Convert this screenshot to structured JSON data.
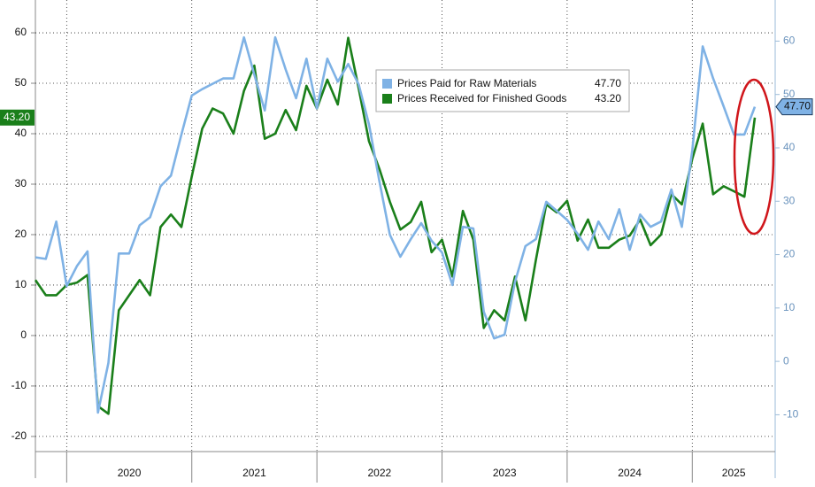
{
  "chart_data": {
    "type": "line",
    "categories": [
      null,
      null,
      null,
      null,
      null,
      null,
      null,
      null,
      null,
      "2020",
      null,
      null,
      null,
      null,
      null,
      null,
      null,
      null,
      null,
      null,
      null,
      "2021",
      null,
      null,
      null,
      null,
      null,
      null,
      null,
      null,
      null,
      null,
      null,
      "2022",
      null,
      null,
      null,
      null,
      null,
      null,
      null,
      null,
      null,
      null,
      null,
      "2023",
      null,
      null,
      null,
      null,
      null,
      null,
      null,
      null,
      null,
      null,
      null,
      "2024",
      null,
      null,
      null,
      null,
      null,
      null,
      null,
      null,
      null,
      "2025",
      null,
      null
    ],
    "series": [
      {
        "name": "Prices Paid for Raw Materials",
        "color": "#7fb2e5",
        "axis": "y2",
        "values": [
          19.5,
          19.2,
          26.2,
          14.1,
          17.9,
          20.6,
          -9.6,
          -0.3,
          20.2,
          20.2,
          25.5,
          27,
          32.8,
          34.8,
          42.5,
          49.8,
          51,
          52,
          53,
          53,
          60.7,
          53.7,
          47,
          60.7,
          54.7,
          49.3,
          56.7,
          47.4,
          56.7,
          52.4,
          55.7,
          51.9,
          44.4,
          33.7,
          23.7,
          19.6,
          22.9,
          25.9,
          22.6,
          20.4,
          14.3,
          25.2,
          24.9,
          9.3,
          4.3,
          5,
          14.9,
          21.6,
          22.9,
          29.9,
          28.2,
          26.5,
          23.9,
          20.9,
          26.2,
          22.9,
          28.5,
          20.9,
          27.5,
          25.2,
          26.2,
          32.2,
          25.2,
          39.5,
          59,
          53,
          47.8,
          42.5,
          42.5,
          47.7
        ],
        "value_labels": [
          null,
          null,
          null,
          null,
          null,
          null,
          null,
          null,
          null,
          null,
          null,
          null,
          null,
          null,
          null,
          null,
          null,
          null,
          null,
          null,
          null,
          null,
          null,
          null,
          null,
          null,
          null,
          null,
          null,
          null,
          null,
          null,
          null,
          null,
          null,
          null,
          null,
          null,
          null,
          null,
          null,
          null,
          null,
          null,
          null,
          null,
          null,
          null,
          null,
          null,
          null,
          null,
          null,
          null,
          null,
          null,
          null,
          null,
          null,
          null,
          null,
          null,
          null,
          null,
          null,
          null,
          null,
          null,
          null,
          "47.70"
        ]
      },
      {
        "name": "Prices Received for Finished Goods",
        "color": "#1a7f1a",
        "values": [
          11,
          8,
          8,
          10,
          10.5,
          12,
          -14,
          -15.5,
          5,
          8,
          11,
          8,
          21.5,
          24,
          21.5,
          31.5,
          41,
          45,
          44,
          40,
          48.5,
          53.5,
          39,
          40,
          44.7,
          40.7,
          49.5,
          45,
          50.7,
          45.8,
          59,
          49,
          38.5,
          33,
          26.5,
          21,
          22.5,
          26.5,
          16.5,
          19,
          11.7,
          24.7,
          19,
          1.5,
          5,
          3,
          11.7,
          3,
          15,
          26,
          24.4,
          26.7,
          18.8,
          23,
          17.4,
          17.4,
          19,
          19.8,
          23,
          17.9,
          20,
          28,
          26,
          35,
          42,
          28,
          29.6,
          28.6,
          27.5,
          43.2
        ],
        "value_labels": [
          null,
          null,
          null,
          null,
          null,
          null,
          null,
          null,
          null,
          null,
          null,
          null,
          null,
          null,
          null,
          null,
          null,
          null,
          null,
          null,
          null,
          null,
          null,
          null,
          null,
          null,
          null,
          null,
          null,
          null,
          null,
          null,
          null,
          null,
          null,
          null,
          null,
          null,
          null,
          null,
          null,
          null,
          null,
          null,
          null,
          null,
          null,
          null,
          null,
          null,
          null,
          null,
          null,
          null,
          null,
          null,
          null,
          null,
          null,
          null,
          null,
          null,
          null,
          null,
          null,
          null,
          null,
          null,
          null,
          "43.20"
        ]
      }
    ],
    "ylim": [
      -23,
      66.5
    ],
    "yticks": [
      -20,
      -10,
      0,
      10,
      20,
      30,
      40,
      50,
      60
    ],
    "y2lim": [
      -16.9,
      67.7
    ],
    "y2ticks": [
      -10,
      0,
      10,
      20,
      30,
      40,
      50,
      60
    ],
    "grid": true
  }
}
